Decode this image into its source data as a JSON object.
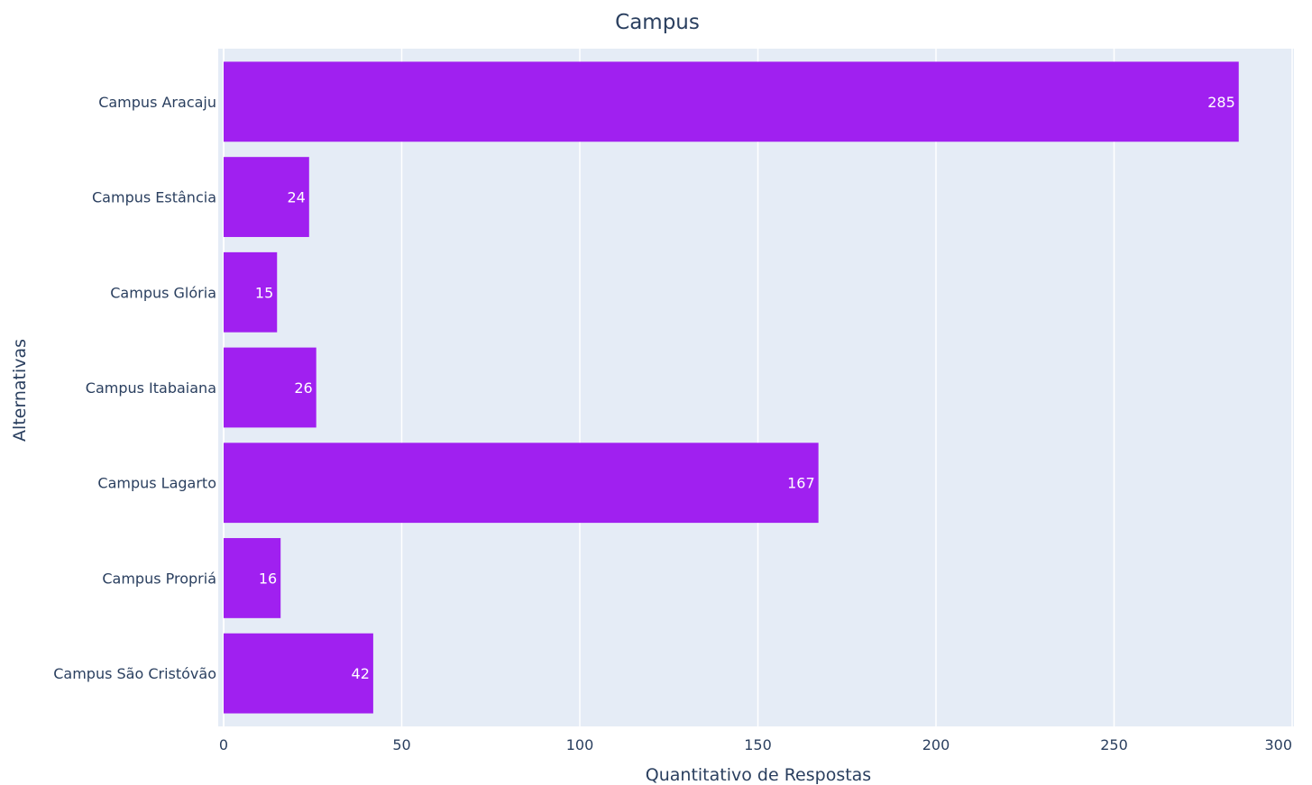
{
  "colors": {
    "plot_background": "#e5ecf6",
    "gridline": "#ffffff",
    "bar_fill": "#a020f0",
    "text": "#2a3f5f",
    "data_label": "#ffffff"
  },
  "chart_data": {
    "type": "bar",
    "orientation": "horizontal",
    "title": "Campus",
    "xlabel": "Quantitativo de Respostas",
    "ylabel": "Alternativas",
    "categories": [
      "Campus Aracaju",
      "Campus Estância",
      "Campus Glória",
      "Campus Itabaiana",
      "Campus Lagarto",
      "Campus Propriá",
      "Campus São Cristóvão"
    ],
    "values": [
      285,
      24,
      15,
      26,
      167,
      16,
      42
    ],
    "xlim": [
      0,
      300
    ],
    "xticks": [
      0,
      50,
      100,
      150,
      200,
      250,
      300
    ],
    "grid": true,
    "legend": "none",
    "data_labels": "inside-end"
  }
}
